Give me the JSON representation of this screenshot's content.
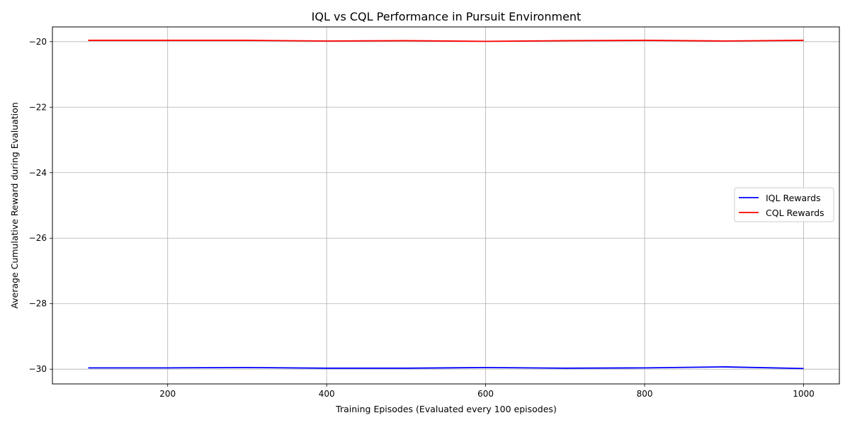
{
  "chart_data": {
    "type": "line",
    "title": "IQL vs CQL Performance in Pursuit Environment",
    "xlabel": "Training Episodes (Evaluated every 100 episodes)",
    "ylabel": "Average Cumulative Reward during Evaluation",
    "xlim": [
      55,
      1045
    ],
    "ylim": [
      -30.45,
      -19.55
    ],
    "x_ticks": [
      200,
      400,
      600,
      800,
      1000
    ],
    "y_ticks": [
      -30,
      -28,
      -26,
      -24,
      -22,
      -20
    ],
    "x_tick_labels": [
      "200",
      "400",
      "600",
      "800",
      "1000"
    ],
    "y_tick_labels": [
      "−30",
      "−28",
      "−26",
      "−24",
      "−22",
      "−20"
    ],
    "grid": true,
    "legend_position": "center-right",
    "x": [
      100,
      200,
      300,
      400,
      500,
      600,
      700,
      800,
      900,
      1000
    ],
    "series": [
      {
        "name": "IQL Rewards",
        "color": "#0000ff",
        "values": [
          -29.96,
          -29.96,
          -29.95,
          -29.97,
          -29.97,
          -29.95,
          -29.97,
          -29.96,
          -29.93,
          -29.98
        ]
      },
      {
        "name": "CQL Rewards",
        "color": "#ff0000",
        "values": [
          -19.96,
          -19.96,
          -19.96,
          -19.98,
          -19.97,
          -19.99,
          -19.97,
          -19.96,
          -19.98,
          -19.96
        ]
      }
    ]
  }
}
